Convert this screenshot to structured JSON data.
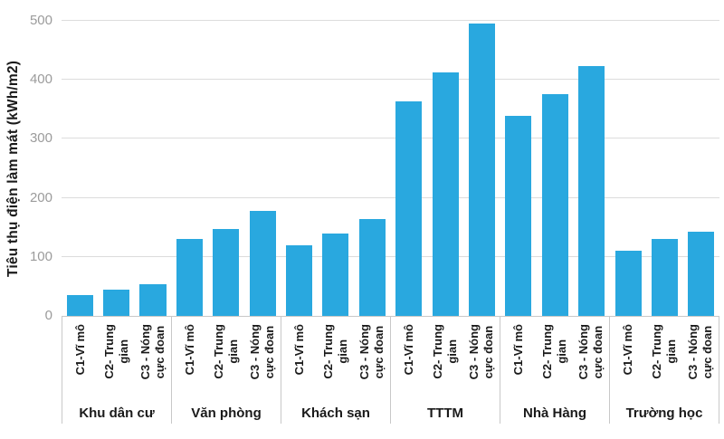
{
  "chart_data": {
    "type": "bar",
    "title": "",
    "xlabel": "",
    "ylabel": "Tiêu thụ điện làm mát (kWh/m2)",
    "ylim": [
      0,
      500
    ],
    "yticks": [
      0,
      100,
      200,
      300,
      400,
      500
    ],
    "grid": true,
    "legend": "none",
    "bar_color": "#29a8df",
    "categories": [
      "Khu dân cư",
      "Văn phòng",
      "Khách sạn",
      "TTTM",
      "Nhà Hàng",
      "Trường học"
    ],
    "series": [
      {
        "name": "C1-Vĩ mô",
        "display": "C1-Vĩ mô",
        "values": [
          35,
          130,
          120,
          363,
          339,
          110
        ]
      },
      {
        "name": "C2- Trung gian",
        "display": "C2- Trung\ngian",
        "values": [
          45,
          148,
          140,
          412,
          376,
          130
        ]
      },
      {
        "name": "C3 - Nóng cực đoan",
        "display": "C3 - Nóng\ncực đoan",
        "values": [
          54,
          178,
          164,
          495,
          424,
          142
        ]
      }
    ]
  },
  "colors": {
    "bar": "#29a8df",
    "grid": "#dcdcdc",
    "axis": "#c8c8c8",
    "tick_label": "#9b9b9b",
    "text": "#1a1a1a",
    "background": "#ffffff"
  }
}
